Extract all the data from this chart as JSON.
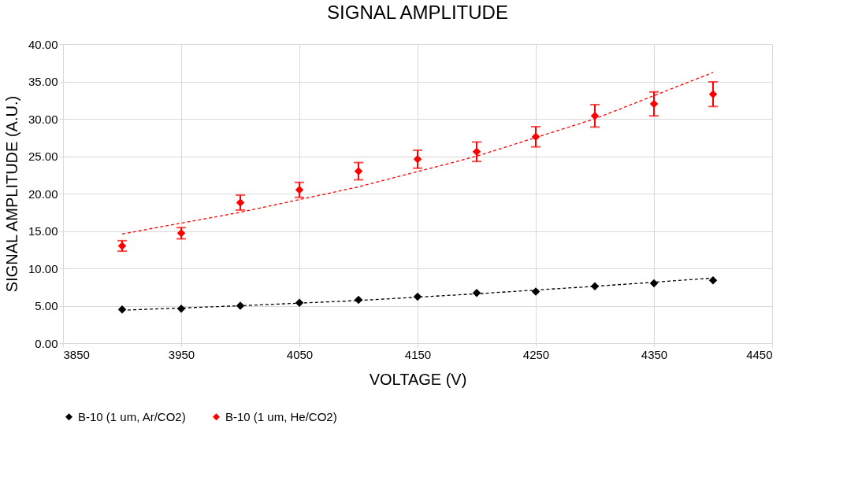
{
  "chart_data": {
    "type": "scatter",
    "title": "SIGNAL AMPLITUDE",
    "xlabel": "VOLTAGE (V)",
    "ylabel": "SIGNAL AMPLITUDE (A.U.)",
    "x": [
      3900,
      3950,
      4000,
      4050,
      4100,
      4150,
      4200,
      4250,
      4300,
      4350,
      4400
    ],
    "series": [
      {
        "name": "B-10 (1 um, Ar/CO2)",
        "color": "#000000",
        "values": [
          4.5,
          4.6,
          5.0,
          5.4,
          5.8,
          6.2,
          6.7,
          6.9,
          7.6,
          8.0,
          8.4
        ]
      },
      {
        "name": "B-10 (1 um, He/CO2)",
        "color": "#ff0000",
        "values": [
          13.0,
          14.7,
          18.8,
          20.5,
          23.0,
          24.6,
          25.6,
          27.6,
          30.4,
          32.0,
          33.3
        ],
        "errors": [
          0.7,
          0.75,
          1.0,
          1.0,
          1.15,
          1.2,
          1.3,
          1.35,
          1.5,
          1.6,
          1.65
        ]
      },
      {
        "type": "line",
        "marker": "none",
        "line_style": "dashed",
        "color": "#000000",
        "x": [
          3900,
          4000,
          4100,
          4200,
          4300,
          4400
        ],
        "values": [
          4.4,
          5.0,
          5.7,
          6.6,
          7.6,
          8.7
        ]
      },
      {
        "type": "line",
        "marker": "none",
        "line_style": "dashed",
        "color": "#ff0000",
        "x": [
          3900,
          4000,
          4100,
          4200,
          4300,
          4400
        ],
        "values": [
          14.6,
          17.5,
          20.9,
          25.0,
          30.0,
          36.2
        ]
      }
    ],
    "xlim": [
      3850,
      4450
    ],
    "xticks": [
      3850,
      3950,
      4050,
      4150,
      4250,
      4350,
      4450
    ],
    "ylim": [
      0,
      40
    ],
    "yticks": [
      {
        "value": 0,
        "label": "0.00"
      },
      {
        "value": 5,
        "label": "5.00"
      },
      {
        "value": 10,
        "label": "10.00"
      },
      {
        "value": 15,
        "label": "15.00"
      },
      {
        "value": 20,
        "label": "20.00"
      },
      {
        "value": 25,
        "label": "25.00"
      },
      {
        "value": 30,
        "label": "30.00"
      },
      {
        "value": 35,
        "label": "35.00"
      },
      {
        "value": 40,
        "label": "40.00"
      }
    ],
    "grid": true,
    "legend": "bottom",
    "marker": "diamond"
  }
}
